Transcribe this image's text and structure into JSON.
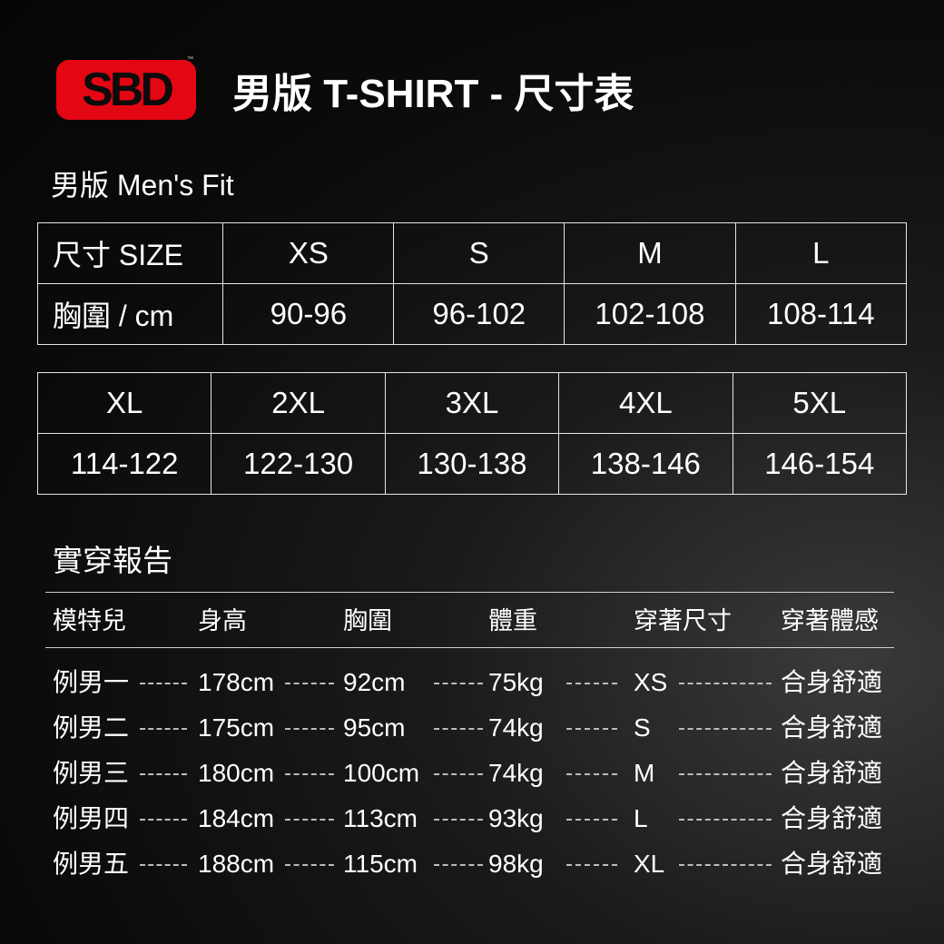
{
  "brand": {
    "logo_text": "SBD",
    "trademark": "™",
    "accent_color": "#e30613"
  },
  "title": "男版 T-SHIRT - 尺寸表",
  "subtitle": "男版 Men's Fit",
  "size_table_1": {
    "row_labels": [
      "尺寸 SIZE",
      "胸圍 / cm"
    ],
    "sizes": [
      "XS",
      "S",
      "M",
      "L"
    ],
    "chest": [
      "90-96",
      "96-102",
      "102-108",
      "108-114"
    ]
  },
  "size_table_2": {
    "sizes": [
      "XL",
      "2XL",
      "3XL",
      "4XL",
      "5XL"
    ],
    "chest": [
      "114-122",
      "122-130",
      "130-138",
      "138-146",
      "146-154"
    ]
  },
  "report": {
    "title": "實穿報告",
    "headers": [
      "模特兒",
      "身高",
      "胸圍",
      "體重",
      "穿著尺寸",
      "穿著體感"
    ],
    "rows": [
      [
        "例男一",
        "178cm",
        "92cm",
        "75kg",
        "XS",
        "合身舒適"
      ],
      [
        "例男二",
        "175cm",
        "95cm",
        "74kg",
        "S",
        "合身舒適"
      ],
      [
        "例男三",
        "180cm",
        "100cm",
        "74kg",
        "M",
        "合身舒適"
      ],
      [
        "例男四",
        "184cm",
        "113cm",
        "93kg",
        "L",
        "合身舒適"
      ],
      [
        "例男五",
        "188cm",
        "115cm",
        "98kg",
        "XL",
        "合身舒適"
      ]
    ]
  }
}
